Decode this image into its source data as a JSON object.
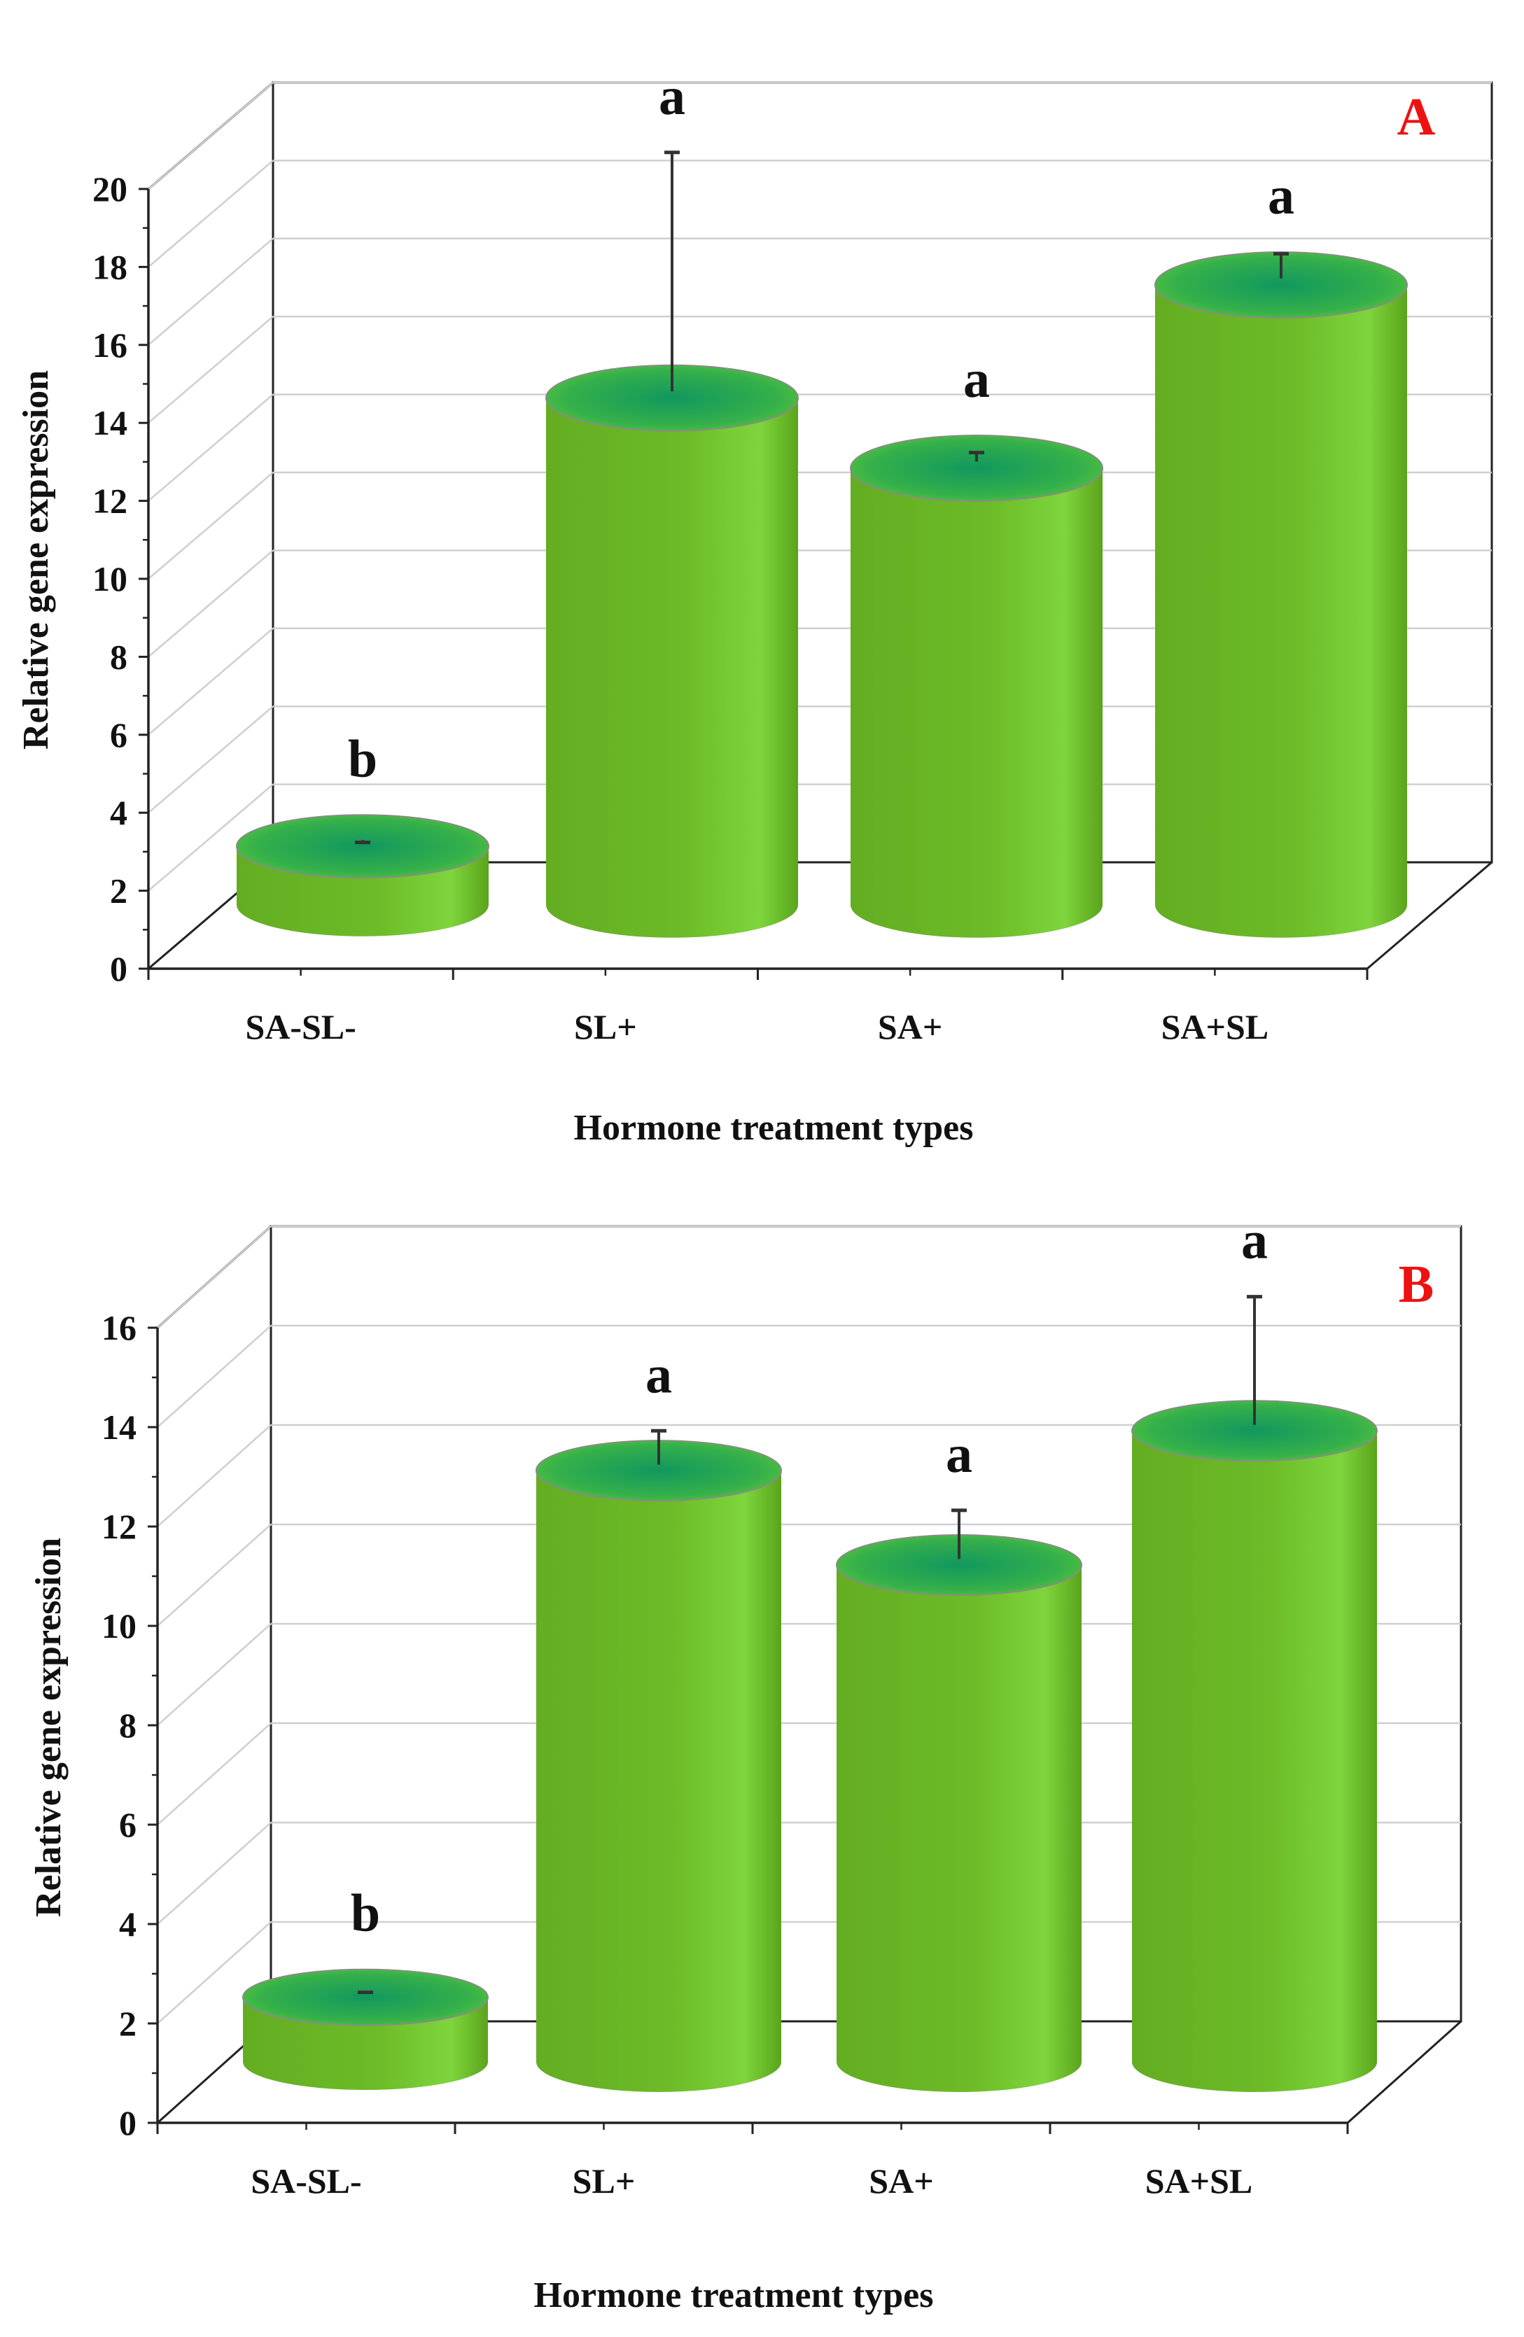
{
  "chart_data": [
    {
      "type": "bar",
      "panel_label": "A",
      "categories": [
        "SA-SL-",
        "SL+",
        "SA+",
        "SA+SL"
      ],
      "values": [
        1.5,
        13.0,
        11.2,
        15.9
      ],
      "errors": [
        0.1,
        6.3,
        0.4,
        0.8
      ],
      "significance": [
        "b",
        "a",
        "a",
        "a"
      ],
      "xlabel": "Hormone treatment types",
      "ylabel": "Relative gene expression",
      "ylim": [
        0,
        20
      ],
      "yticks": [
        "0",
        "2",
        "4",
        "6",
        "8",
        "10",
        "12",
        "14",
        "16",
        "18",
        "20"
      ],
      "grid": true
    },
    {
      "type": "bar",
      "panel_label": "B",
      "categories": [
        "SA-SL-",
        "SL+",
        "SA+",
        "SA+SL"
      ],
      "values": [
        1.3,
        11.9,
        10.0,
        12.7
      ],
      "errors": [
        0.1,
        0.8,
        1.1,
        2.7
      ],
      "significance": [
        "b",
        "a",
        "a",
        "a"
      ],
      "xlabel": "Hormone treatment types",
      "ylabel": "Relative gene expression",
      "ylim": [
        0,
        16
      ],
      "yticks": [
        "0",
        "2",
        "4",
        "6",
        "8",
        "10",
        "12",
        "14",
        "16"
      ],
      "grid": true
    }
  ],
  "colors": {
    "bar_body_dark": "#5fa61c",
    "bar_body_light": "#78cc36",
    "bar_top_center": "#1fa15c",
    "bar_top_edge": "#55c23a",
    "panel_label": "#ee1111"
  }
}
